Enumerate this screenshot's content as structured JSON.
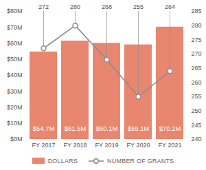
{
  "chart_data": {
    "type": "bar",
    "categories": [
      "FY 2017",
      "FY 2018",
      "FY 2019",
      "FY 2020",
      "FY 2021"
    ],
    "series": [
      {
        "name": "DOLLARS",
        "type": "bar",
        "color": "#e9866f",
        "values": [
          54.7,
          61.5,
          60.1,
          59.1,
          70.2
        ],
        "value_labels": [
          "$54.7M",
          "$61.5M",
          "$60.1M",
          "$59.1M",
          "$70.2M"
        ]
      },
      {
        "name": "NUMBER OF GRANTS",
        "type": "line",
        "axis": "y2",
        "color": "#8c8c8c",
        "marker": "circle",
        "values": [
          272,
          280,
          268,
          255,
          264
        ]
      }
    ],
    "ylim": [
      0,
      80
    ],
    "yticks": [
      {
        "value": 0,
        "label": "$0M"
      },
      {
        "value": 10,
        "label": "$10M"
      },
      {
        "value": 20,
        "label": "$20M"
      },
      {
        "value": 30,
        "label": "$30M"
      },
      {
        "value": 40,
        "label": "$40M"
      },
      {
        "value": 50,
        "label": "$50M"
      },
      {
        "value": 60,
        "label": "$60M"
      },
      {
        "value": 70,
        "label": "$70M"
      },
      {
        "value": 80,
        "label": "$80M"
      }
    ],
    "y2lim": [
      240,
      285
    ],
    "y2ticks": [
      240,
      245,
      250,
      255,
      260,
      265,
      270,
      275,
      280,
      285
    ],
    "data_labels": true,
    "legend": "bottom"
  }
}
